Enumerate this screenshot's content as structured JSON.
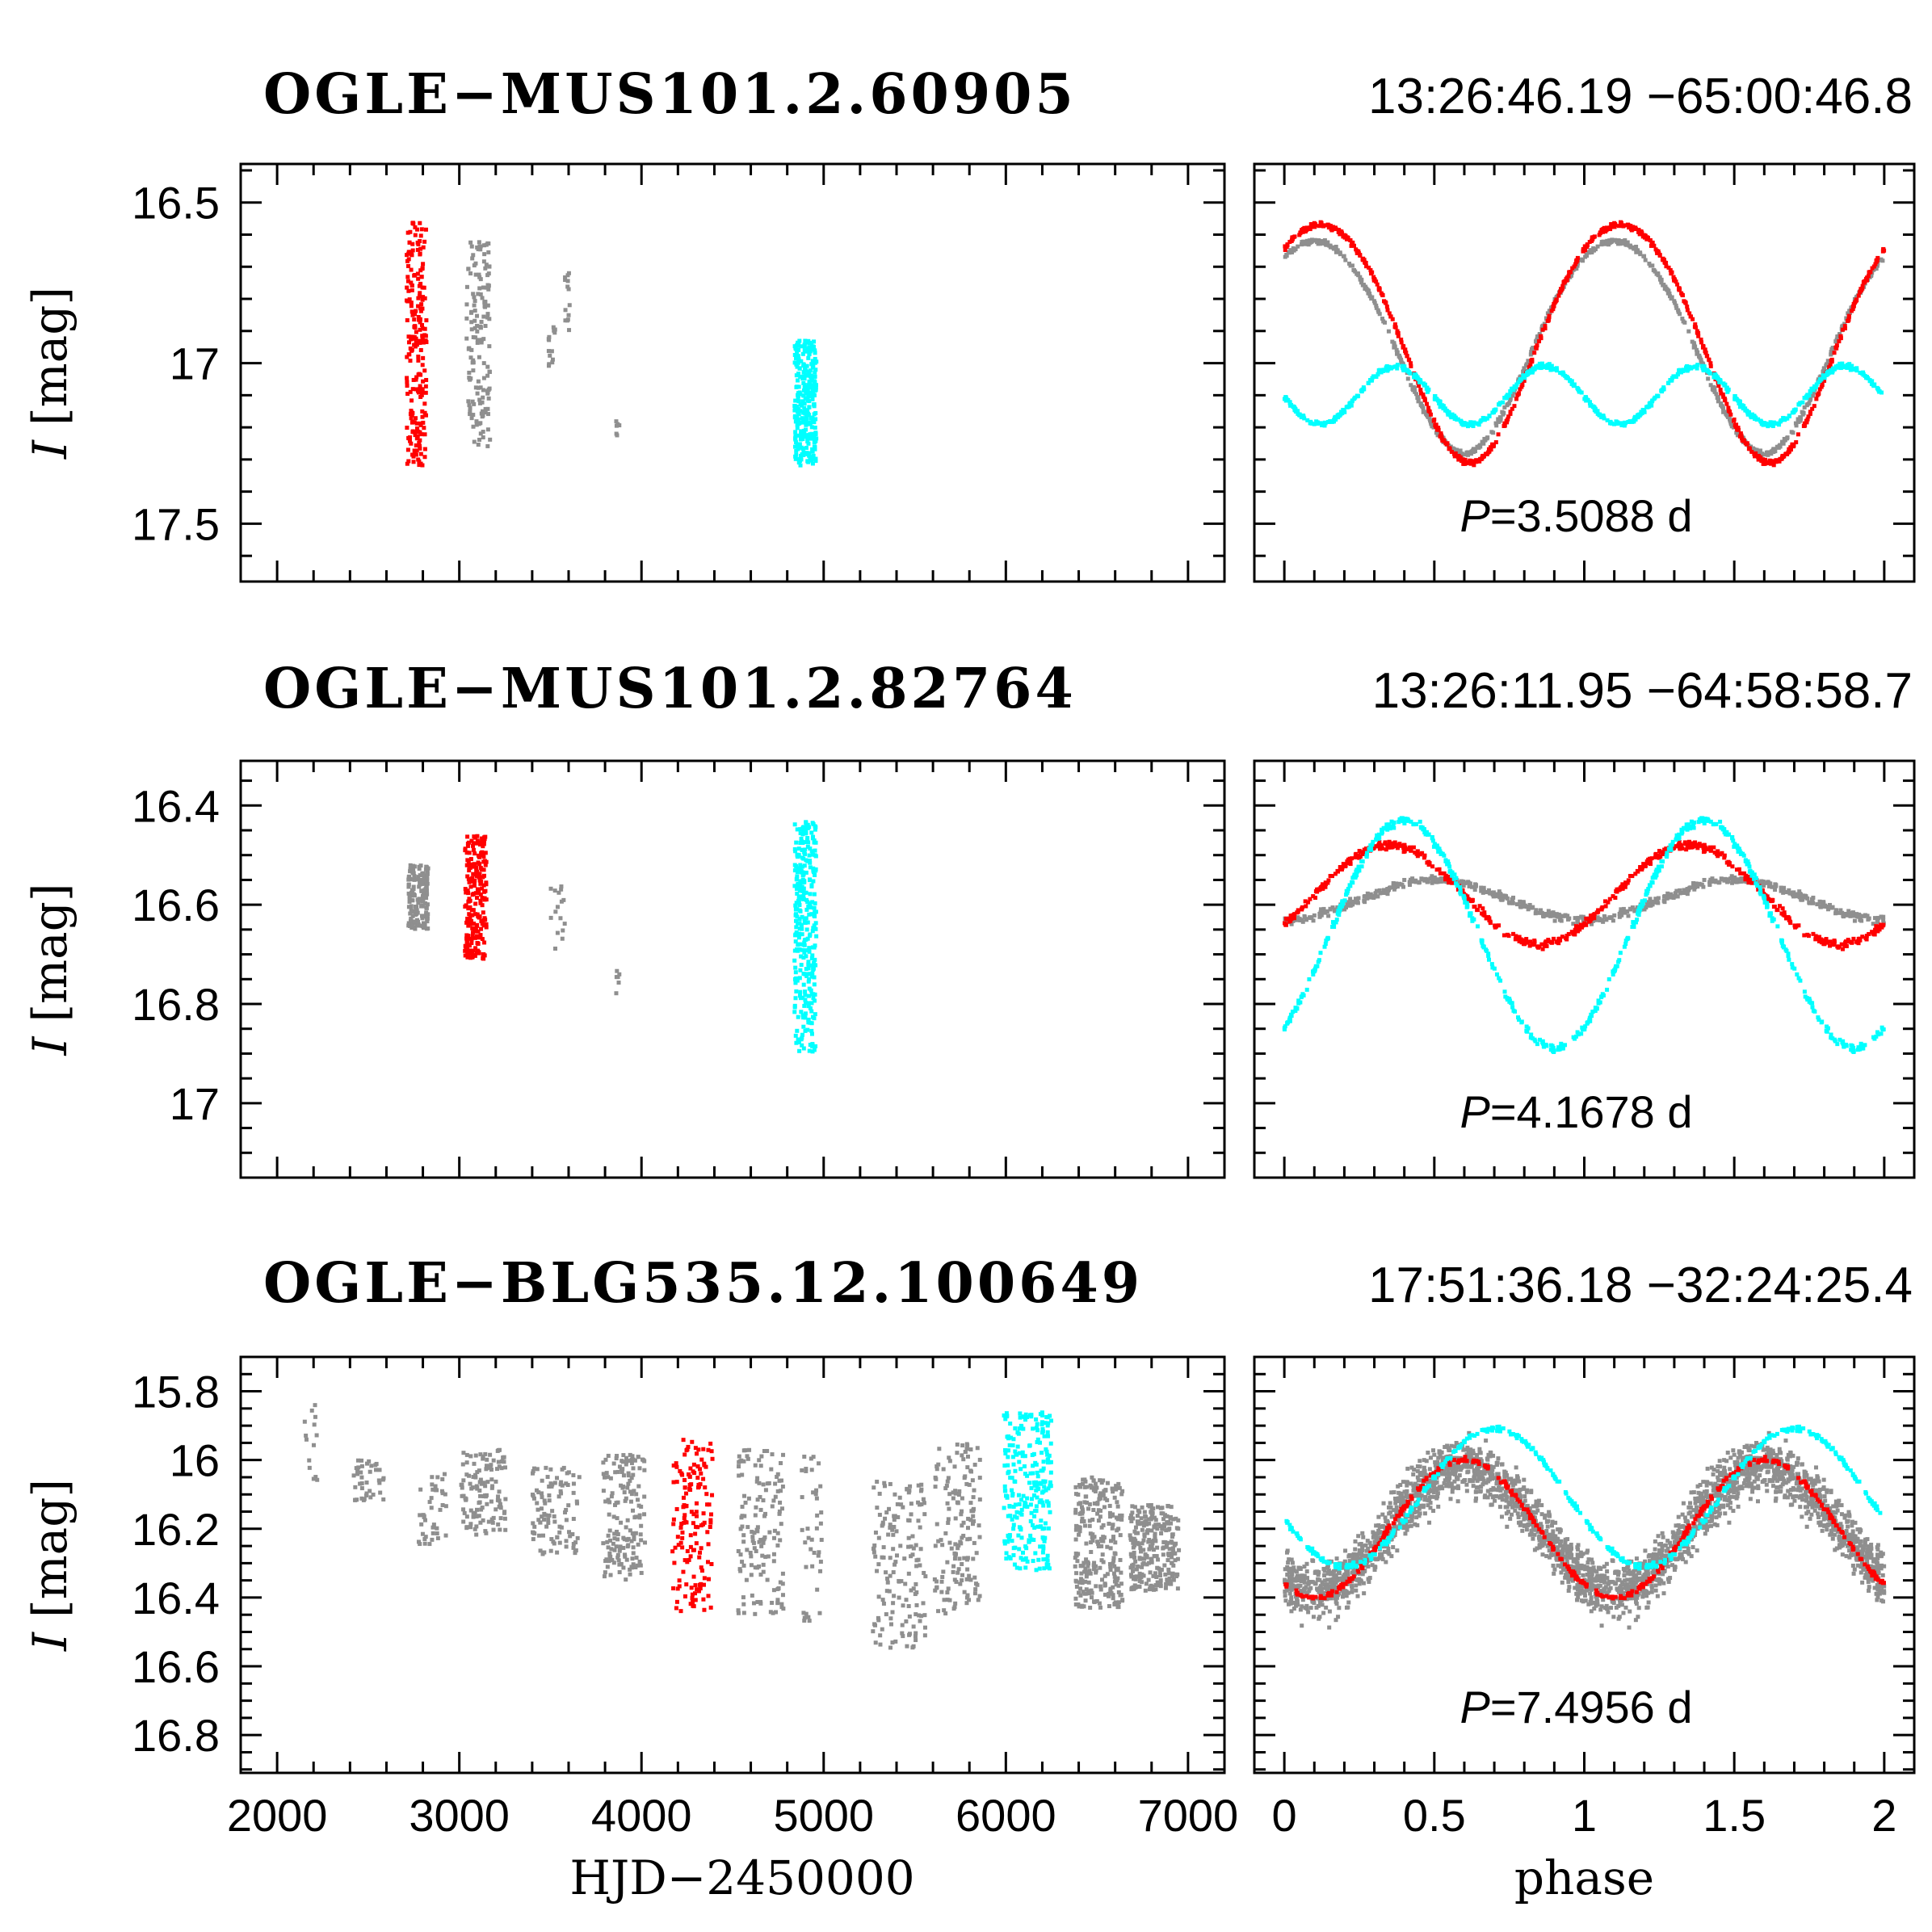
{
  "colors": {
    "gray": "#8f8f8f",
    "red": "#ff0000",
    "cyan": "#00ffff"
  },
  "chart_data": [
    {
      "type": "scatter",
      "object_id": "OGLE−MUS101.2.60905",
      "coords": "13:26:46.19  −65:00:46.8",
      "ylabel_symbol": "I",
      "ylabel_unit": "[mag]",
      "time_panel": {
        "xlim": [
          1800,
          7200
        ],
        "ylim": [
          17.68,
          16.38
        ],
        "y_ticks": [
          16.5,
          17,
          17.5
        ],
        "y_tick_labels": [
          "16.5",
          "17",
          "17.5"
        ],
        "clusters": [
          {
            "color": "red",
            "x_range": [
              2710,
              2820
            ],
            "y_range": [
              16.56,
              17.32
            ],
            "n": 220
          },
          {
            "color": "gray",
            "x_range": [
              3040,
              3170
            ],
            "y_range": [
              16.62,
              17.26
            ],
            "n": 150
          },
          {
            "color": "gray",
            "x_range": [
              3490,
              3530
            ],
            "y_range": [
              16.88,
              17.02
            ],
            "n": 14
          },
          {
            "color": "gray",
            "x_range": [
              3580,
              3610
            ],
            "y_range": [
              16.72,
              16.92
            ],
            "n": 14
          },
          {
            "color": "gray",
            "x_range": [
              3860,
              3880
            ],
            "y_range": [
              17.18,
              17.23
            ],
            "n": 6
          },
          {
            "color": "cyan",
            "x_range": [
              4840,
              4960
            ],
            "y_range": [
              16.93,
              17.32
            ],
            "n": 300
          }
        ]
      },
      "phase_panel": {
        "xlim": [
          -0.1,
          2.1
        ],
        "ylim": [
          17.68,
          16.38
        ],
        "period_label": "P=3.5088 d",
        "curves": [
          {
            "color": "gray",
            "mean": 16.95,
            "amp": 0.33,
            "phase_min": 0.6,
            "skew": 0.12,
            "n": 360
          },
          {
            "color": "red",
            "mean": 16.94,
            "amp": 0.37,
            "phase_min": 0.62,
            "skew": 0.15,
            "n": 360
          },
          {
            "color": "cyan",
            "mean": 17.1,
            "amp": 0.09,
            "phase_min": 0.62,
            "harmonic": 2,
            "n": 360
          }
        ]
      }
    },
    {
      "type": "scatter",
      "object_id": "OGLE−MUS101.2.82764",
      "coords": "13:26:11.95  −64:58:58.7",
      "ylabel_symbol": "I",
      "ylabel_unit": "[mag]",
      "time_panel": {
        "xlim": [
          1800,
          7200
        ],
        "ylim": [
          17.15,
          16.31
        ],
        "y_ticks": [
          16.4,
          16.6,
          16.8,
          17.0
        ],
        "y_tick_labels": [
          "16.4",
          "16.6",
          "16.8",
          "17"
        ],
        "clusters": [
          {
            "color": "gray",
            "x_range": [
              2720,
              2830
            ],
            "y_range": [
              16.52,
              16.65
            ],
            "n": 150
          },
          {
            "color": "red",
            "x_range": [
              3030,
              3150
            ],
            "y_range": [
              16.46,
              16.71
            ],
            "n": 220
          },
          {
            "color": "gray",
            "x_range": [
              3500,
              3580
            ],
            "y_range": [
              16.55,
              16.69
            ],
            "n": 16
          },
          {
            "color": "gray",
            "x_range": [
              3860,
              3880
            ],
            "y_range": [
              16.73,
              16.78
            ],
            "n": 6
          },
          {
            "color": "cyan",
            "x_range": [
              4840,
              4960
            ],
            "y_range": [
              16.43,
              16.9
            ],
            "n": 320
          }
        ]
      },
      "phase_panel": {
        "xlim": [
          -0.1,
          2.1
        ],
        "ylim": [
          17.15,
          16.31
        ],
        "period_label": "P=4.1678 d",
        "curves": [
          {
            "color": "gray",
            "mean": 16.59,
            "amp": 0.04,
            "phase_min": 0.0,
            "n": 300
          },
          {
            "color": "red",
            "mean": 16.58,
            "amp": 0.1,
            "phase_min": 0.85,
            "n": 300
          },
          {
            "color": "cyan",
            "mean": 16.66,
            "amp": 0.23,
            "phase_min": 0.9,
            "n": 300
          }
        ]
      }
    },
    {
      "type": "scatter",
      "object_id": "OGLE−BLG535.12.100649",
      "coords": "17:51:36.18  −32:24:25.4",
      "ylabel_symbol": "I",
      "ylabel_unit": "[mag]",
      "time_panel": {
        "xlim": [
          1800,
          7200
        ],
        "ylim": [
          16.91,
          15.7
        ],
        "y_ticks": [
          15.8,
          16.0,
          16.2,
          16.4,
          16.6,
          16.8
        ],
        "y_tick_labels": [
          "15.8",
          "16",
          "16.2",
          "16.4",
          "16.6",
          "16.8"
        ],
        "clusters": [
          {
            "color": "gray",
            "x_range": [
              2150,
              2220
            ],
            "y_range": [
              15.84,
              16.06
            ],
            "n": 14
          },
          {
            "color": "gray",
            "x_range": [
              2400,
              2590
            ],
            "y_range": [
              16.0,
              16.12
            ],
            "n": 40
          },
          {
            "color": "gray",
            "x_range": [
              2770,
              2930
            ],
            "y_range": [
              16.04,
              16.25
            ],
            "n": 40
          },
          {
            "color": "gray",
            "x_range": [
              3010,
              3260
            ],
            "y_range": [
              15.97,
              16.22
            ],
            "n": 120
          },
          {
            "color": "gray",
            "x_range": [
              3400,
              3660
            ],
            "y_range": [
              16.02,
              16.28
            ],
            "n": 100
          },
          {
            "color": "gray",
            "x_range": [
              3790,
              4020
            ],
            "y_range": [
              15.98,
              16.35
            ],
            "n": 160
          },
          {
            "color": "red",
            "x_range": [
              4170,
              4390
            ],
            "y_range": [
              15.94,
              16.44
            ],
            "n": 150
          },
          {
            "color": "gray",
            "x_range": [
              4530,
              4780
            ],
            "y_range": [
              15.97,
              16.45
            ],
            "n": 140
          },
          {
            "color": "gray",
            "x_range": [
              4880,
              4990
            ],
            "y_range": [
              15.96,
              16.47
            ],
            "n": 40
          },
          {
            "color": "gray",
            "x_range": [
              5270,
              5560
            ],
            "y_range": [
              16.06,
              16.55
            ],
            "n": 150
          },
          {
            "color": "gray",
            "x_range": [
              5610,
              5860
            ],
            "y_range": [
              15.95,
              16.45
            ],
            "n": 150
          },
          {
            "color": "cyan",
            "x_range": [
              5990,
              6250
            ],
            "y_range": [
              15.86,
              16.32
            ],
            "n": 260
          },
          {
            "color": "gray",
            "x_range": [
              6380,
              6640
            ],
            "y_range": [
              16.05,
              16.43
            ],
            "n": 260
          },
          {
            "color": "gray",
            "x_range": [
              6680,
              6950
            ],
            "y_range": [
              16.13,
              16.38
            ],
            "n": 260
          }
        ]
      },
      "phase_panel": {
        "xlim": [
          -0.1,
          2.1
        ],
        "ylim": [
          16.91,
          15.7
        ],
        "period_label": "P=7.4956 d",
        "curves": [
          {
            "color": "gray",
            "mean": 16.2,
            "amp": 0.18,
            "phase_min": 0.1,
            "scatter": 0.12,
            "n": 1400
          },
          {
            "color": "red",
            "mean": 16.2,
            "amp": 0.2,
            "phase_min": 0.1,
            "n": 220
          },
          {
            "color": "cyan",
            "mean": 16.11,
            "amp": 0.2,
            "phase_min": 0.2,
            "n": 220
          }
        ]
      }
    }
  ],
  "shared": {
    "time_xlabel": "HJD−2450000",
    "phase_xlabel": "phase",
    "time_x_ticks": [
      2000,
      3000,
      4000,
      5000,
      6000,
      7000
    ],
    "time_x_tick_labels": [
      "2000",
      "3000",
      "4000",
      "5000",
      "6000",
      "7000"
    ],
    "phase_x_ticks": [
      0,
      0.5,
      1,
      1.5,
      2
    ],
    "phase_x_tick_labels": [
      "0",
      "0.5",
      "1",
      "1.5",
      "2"
    ]
  }
}
